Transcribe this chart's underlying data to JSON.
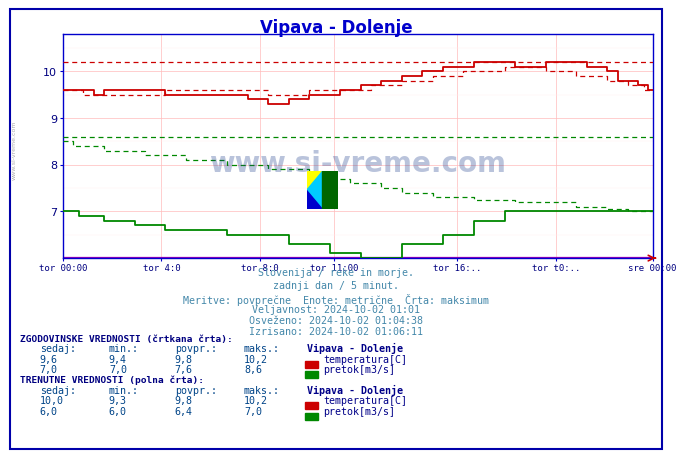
{
  "title": "Vipava - Dolenje",
  "title_color": "#0000cc",
  "bg_color": "#ffffff",
  "plot_bg_color": "#ffffff",
  "ylim": [
    6.0,
    10.8
  ],
  "n_points": 288,
  "red_solid_color": "#cc0000",
  "red_dashed_color": "#cc0000",
  "green_solid_color": "#008800",
  "green_dashed_color": "#008800",
  "purple_line_color": "#9900aa",
  "watermark": "www.si-vreme.com",
  "x_tick_labels": [
    "tor 00:00",
    "tor 4:0",
    "tor 8:0",
    "tor 11:00",
    "tor 16:..",
    "tor t0:..",
    "sre 00:00"
  ],
  "x_tick_positions": [
    0,
    48,
    96,
    132,
    192,
    240,
    287
  ],
  "y_ticks": [
    7,
    8,
    9,
    10
  ],
  "text_info_color": "#4488aa",
  "text_info": [
    "Slovenija / reke in morje.",
    "zadnji dan / 5 minut.",
    "Meritve: povprečne  Enote: metrične  Črta: maksimum",
    "Veljavnost: 2024-10-02 01:01",
    "Osveženo: 2024-10-02 01:04:38",
    "Izrisano: 2024-10-02 01:06:11"
  ],
  "table_header_color": "#000080",
  "table_value_color": "#004488",
  "hist_header": "ZGODOVINSKE VREDNOSTI (črtkana črta):",
  "curr_header": "TRENUTNE VREDNOSTI (polna črta):",
  "col_headers": [
    "sedaj:",
    "min.:",
    "povpr.:",
    "maks.:"
  ],
  "legend_title": "Vipava - Dolenje",
  "hist_temp_vals": [
    "9,6",
    "9,4",
    "9,8",
    "10,2"
  ],
  "hist_flow_vals": [
    "7,0",
    "7,0",
    "7,6",
    "8,6"
  ],
  "curr_temp_vals": [
    "10,0",
    "9,3",
    "9,8",
    "10,2"
  ],
  "curr_flow_vals": [
    "6,0",
    "6,0",
    "6,4",
    "7,0"
  ],
  "temp_label": "temperatura[C]",
  "flow_label": "pretok[m3/s]"
}
